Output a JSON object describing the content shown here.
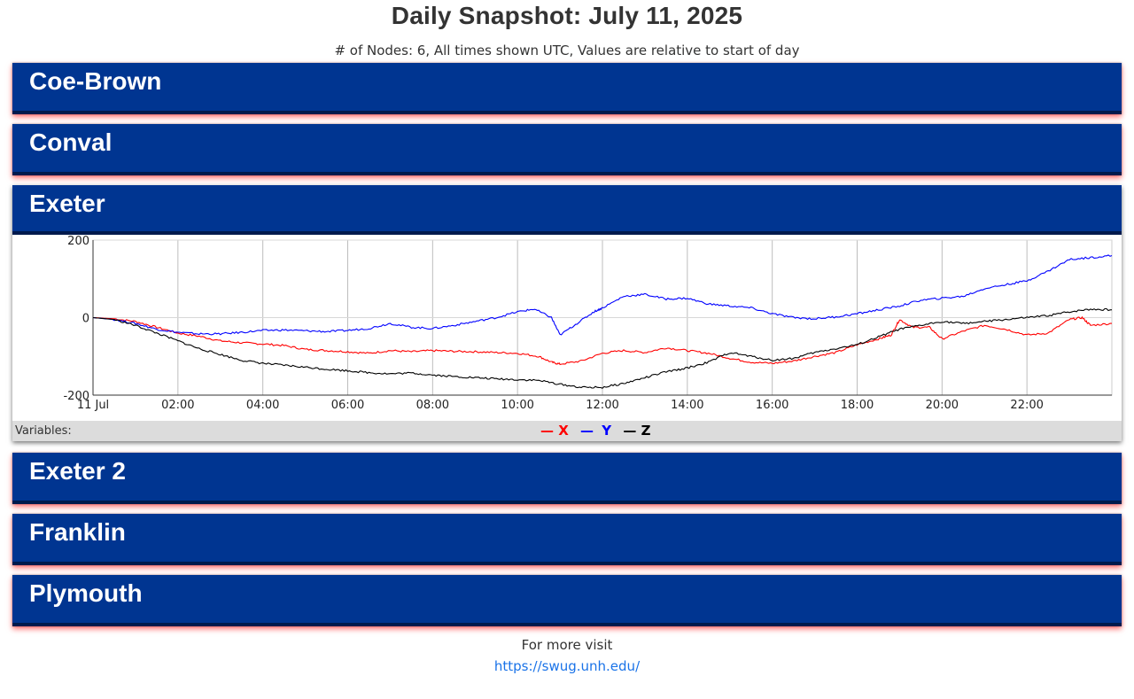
{
  "header": {
    "title": "Daily Snapshot: July 11, 2025",
    "subtitle": "# of Nodes: 6, All times shown UTC, Values are relative to start of day"
  },
  "nodes": [
    {
      "name": "Coe-Brown",
      "expanded": false
    },
    {
      "name": "Conval",
      "expanded": false
    },
    {
      "name": "Exeter",
      "expanded": true
    },
    {
      "name": "Exeter 2",
      "expanded": false
    },
    {
      "name": "Franklin",
      "expanded": false
    },
    {
      "name": "Plymouth",
      "expanded": false
    }
  ],
  "variables_label": "Variables:",
  "legend": [
    {
      "name": "X",
      "color": "#ff0000"
    },
    {
      "name": "Y",
      "color": "#0000ff"
    },
    {
      "name": "Z",
      "color": "#000000"
    }
  ],
  "chart_data": {
    "type": "line",
    "title": "",
    "xlabel": "",
    "ylabel": "",
    "x_unit": "hours UTC",
    "xlim": [
      0,
      24
    ],
    "ylim": [
      -200,
      200
    ],
    "grid": true,
    "x_ticks": [
      {
        "value": 0,
        "label": "11 Jul"
      },
      {
        "value": 2,
        "label": "02:00"
      },
      {
        "value": 4,
        "label": "04:00"
      },
      {
        "value": 6,
        "label": "06:00"
      },
      {
        "value": 8,
        "label": "08:00"
      },
      {
        "value": 10,
        "label": "10:00"
      },
      {
        "value": 12,
        "label": "12:00"
      },
      {
        "value": 14,
        "label": "14:00"
      },
      {
        "value": 16,
        "label": "16:00"
      },
      {
        "value": 18,
        "label": "18:00"
      },
      {
        "value": 20,
        "label": "20:00"
      },
      {
        "value": 22,
        "label": "22:00"
      }
    ],
    "y_ticks": [
      {
        "value": 200,
        "label": "200"
      },
      {
        "value": 0,
        "label": "0"
      },
      {
        "value": -200,
        "label": "-200"
      }
    ],
    "series": [
      {
        "name": "X",
        "color": "#ff0000",
        "points": [
          [
            0,
            0
          ],
          [
            0.5,
            -3
          ],
          [
            1,
            -10
          ],
          [
            1.5,
            -25
          ],
          [
            2,
            -40
          ],
          [
            2.5,
            -48
          ],
          [
            3,
            -60
          ],
          [
            3.5,
            -65
          ],
          [
            4,
            -68
          ],
          [
            4.5,
            -72
          ],
          [
            5,
            -82
          ],
          [
            5.5,
            -85
          ],
          [
            6,
            -88
          ],
          [
            6.5,
            -92
          ],
          [
            7,
            -85
          ],
          [
            7.5,
            -88
          ],
          [
            8,
            -85
          ],
          [
            8.5,
            -87
          ],
          [
            9,
            -88
          ],
          [
            9.5,
            -90
          ],
          [
            10,
            -92
          ],
          [
            10.5,
            -100
          ],
          [
            10.8,
            -115
          ],
          [
            11,
            -120
          ],
          [
            11.5,
            -112
          ],
          [
            12,
            -92
          ],
          [
            12.5,
            -85
          ],
          [
            13,
            -90
          ],
          [
            13.5,
            -78
          ],
          [
            14,
            -85
          ],
          [
            14.5,
            -92
          ],
          [
            15,
            -105
          ],
          [
            15.5,
            -115
          ],
          [
            16,
            -118
          ],
          [
            16.5,
            -112
          ],
          [
            17,
            -100
          ],
          [
            17.5,
            -90
          ],
          [
            18,
            -70
          ],
          [
            18.5,
            -55
          ],
          [
            18.8,
            -45
          ],
          [
            19,
            -5
          ],
          [
            19.3,
            -25
          ],
          [
            19.7,
            -25
          ],
          [
            20,
            -55
          ],
          [
            20.5,
            -35
          ],
          [
            21,
            -20
          ],
          [
            21.5,
            -30
          ],
          [
            22,
            -45
          ],
          [
            22.5,
            -40
          ],
          [
            23,
            -5
          ],
          [
            23.3,
            0
          ],
          [
            23.5,
            -20
          ],
          [
            24,
            -15
          ]
        ]
      },
      {
        "name": "Y",
        "color": "#0000ff",
        "points": [
          [
            0,
            0
          ],
          [
            0.5,
            -5
          ],
          [
            1,
            -15
          ],
          [
            1.5,
            -30
          ],
          [
            2,
            -38
          ],
          [
            2.5,
            -42
          ],
          [
            3,
            -42
          ],
          [
            3.5,
            -38
          ],
          [
            4,
            -33
          ],
          [
            4.5,
            -32
          ],
          [
            5,
            -34
          ],
          [
            5.5,
            -36
          ],
          [
            6,
            -33
          ],
          [
            6.5,
            -28
          ],
          [
            7,
            -15
          ],
          [
            7.5,
            -25
          ],
          [
            8,
            -28
          ],
          [
            8.5,
            -20
          ],
          [
            9,
            -10
          ],
          [
            9.5,
            0
          ],
          [
            10,
            15
          ],
          [
            10.4,
            22
          ],
          [
            10.8,
            0
          ],
          [
            11,
            -45
          ],
          [
            11.4,
            -15
          ],
          [
            11.8,
            15
          ],
          [
            12,
            25
          ],
          [
            12.5,
            55
          ],
          [
            13,
            60
          ],
          [
            13.5,
            48
          ],
          [
            14,
            50
          ],
          [
            14.5,
            35
          ],
          [
            15,
            30
          ],
          [
            15.5,
            25
          ],
          [
            16,
            10
          ],
          [
            16.5,
            0
          ],
          [
            17,
            -3
          ],
          [
            17.5,
            2
          ],
          [
            18,
            10
          ],
          [
            18.5,
            20
          ],
          [
            19,
            30
          ],
          [
            19.5,
            45
          ],
          [
            20,
            50
          ],
          [
            20.5,
            55
          ],
          [
            21,
            75
          ],
          [
            21.5,
            85
          ],
          [
            22,
            95
          ],
          [
            22.5,
            120
          ],
          [
            23,
            150
          ],
          [
            23.5,
            155
          ],
          [
            24,
            160
          ]
        ]
      },
      {
        "name": "Z",
        "color": "#000000",
        "points": [
          [
            0,
            0
          ],
          [
            0.5,
            -5
          ],
          [
            1,
            -20
          ],
          [
            1.5,
            -40
          ],
          [
            2,
            -60
          ],
          [
            2.5,
            -80
          ],
          [
            3,
            -95
          ],
          [
            3.5,
            -110
          ],
          [
            4,
            -118
          ],
          [
            4.5,
            -123
          ],
          [
            5,
            -128
          ],
          [
            5.5,
            -133
          ],
          [
            6,
            -137
          ],
          [
            6.5,
            -142
          ],
          [
            7,
            -145
          ],
          [
            7.5,
            -143
          ],
          [
            8,
            -148
          ],
          [
            8.5,
            -152
          ],
          [
            9,
            -155
          ],
          [
            9.5,
            -158
          ],
          [
            10,
            -160
          ],
          [
            10.5,
            -162
          ],
          [
            11,
            -172
          ],
          [
            11.5,
            -180
          ],
          [
            12,
            -180
          ],
          [
            12.5,
            -170
          ],
          [
            13,
            -155
          ],
          [
            13.5,
            -140
          ],
          [
            14,
            -130
          ],
          [
            14.5,
            -115
          ],
          [
            15,
            -90
          ],
          [
            15.5,
            -100
          ],
          [
            16,
            -110
          ],
          [
            16.5,
            -105
          ],
          [
            17,
            -90
          ],
          [
            17.5,
            -80
          ],
          [
            18,
            -70
          ],
          [
            18.5,
            -50
          ],
          [
            19,
            -30
          ],
          [
            19.5,
            -20
          ],
          [
            20,
            -10
          ],
          [
            20.5,
            -15
          ],
          [
            21,
            -10
          ],
          [
            21.5,
            -5
          ],
          [
            22,
            0
          ],
          [
            22.5,
            5
          ],
          [
            23,
            15
          ],
          [
            23.5,
            22
          ],
          [
            24,
            20
          ]
        ]
      }
    ]
  },
  "footer": {
    "text": "For more visit",
    "link": "https://swug.unh.edu/"
  }
}
